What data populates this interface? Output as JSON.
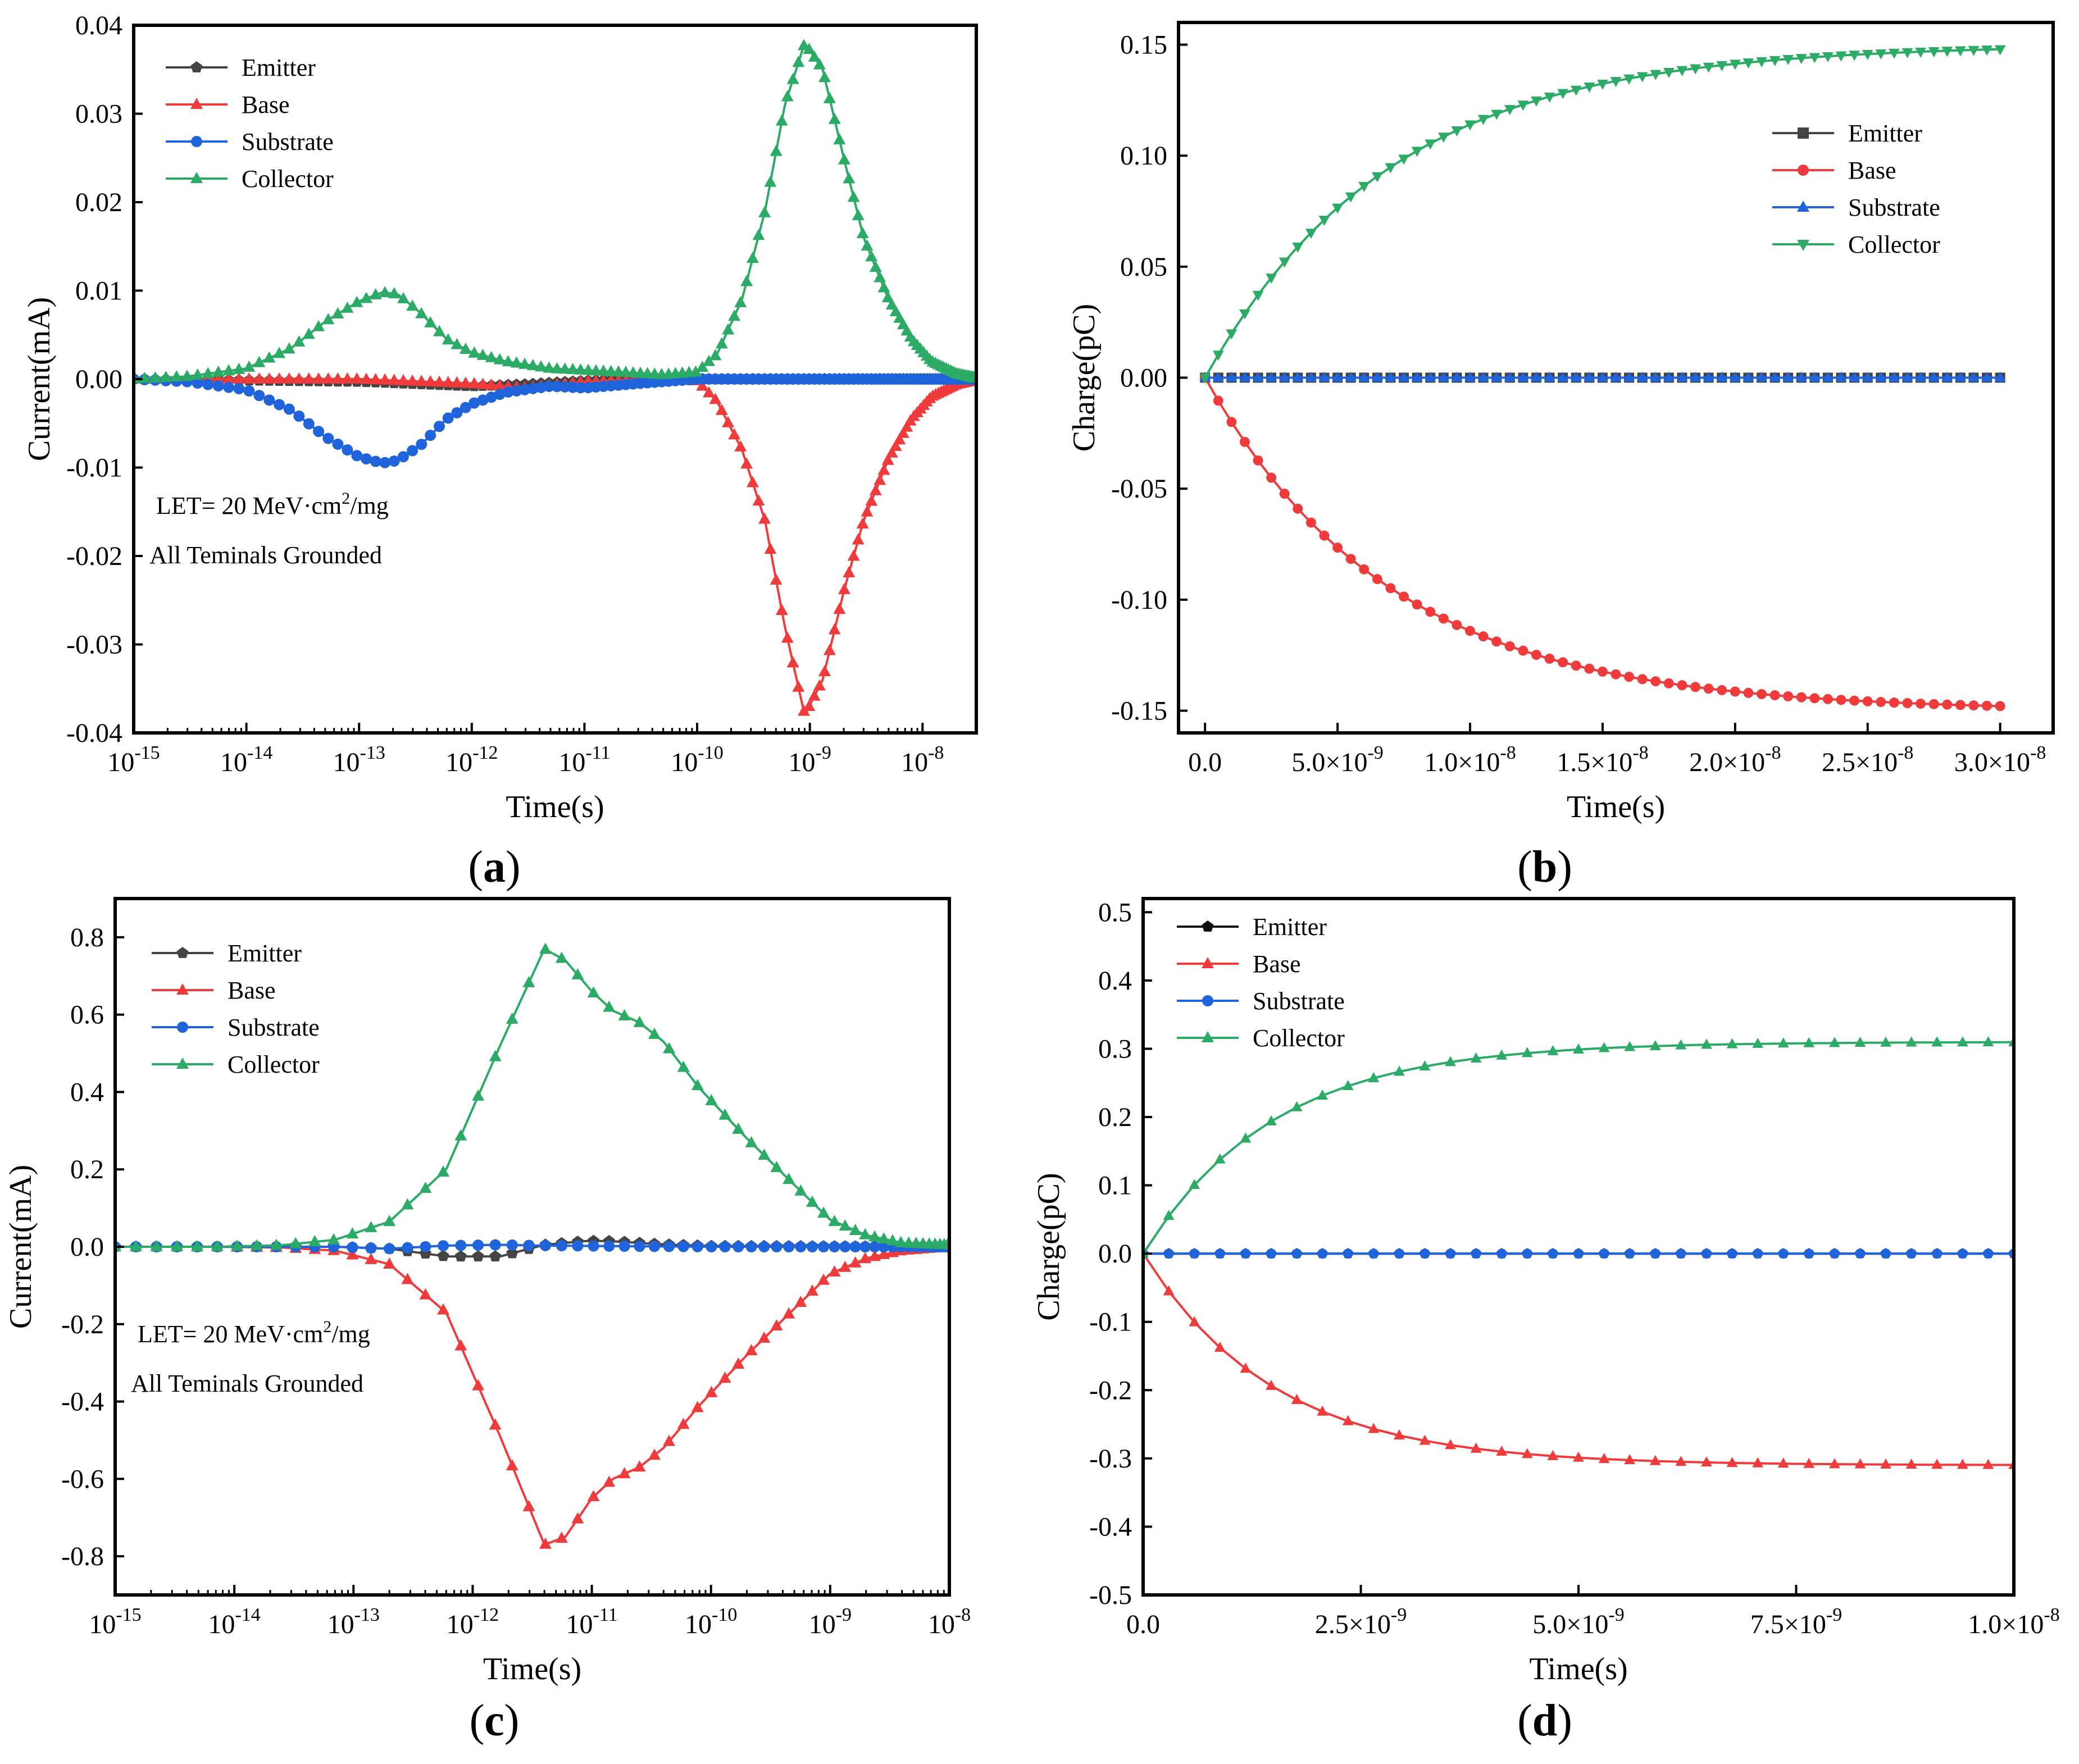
{
  "figure": {
    "panels": [
      {
        "label_open": "(",
        "label_letter": "a",
        "label_close": ")"
      },
      {
        "label_open": "(",
        "label_letter": "b",
        "label_close": ")"
      },
      {
        "label_open": "(",
        "label_letter": "c",
        "label_close": ")"
      },
      {
        "label_open": "(",
        "label_letter": "d",
        "label_close": ")"
      }
    ]
  },
  "colors": {
    "emitter": "#444444",
    "base": "#ef3b3b",
    "substrate": "#1f64db",
    "collector": "#2bab66",
    "emitter_d": "#111111"
  },
  "chart_data": [
    {
      "id": "a",
      "type": "line",
      "x_scale": "log",
      "xlabel": "Time(s)",
      "ylabel": "Current(mA)",
      "xlim": [
        1e-15,
        3e-08
      ],
      "ylim": [
        -0.04,
        0.04
      ],
      "x_ticks": [
        {
          "base": "10",
          "exp": "-15"
        },
        {
          "base": "10",
          "exp": "-14"
        },
        {
          "base": "10",
          "exp": "-13"
        },
        {
          "base": "10",
          "exp": "-12"
        },
        {
          "base": "10",
          "exp": "-11"
        },
        {
          "base": "10",
          "exp": "-10"
        },
        {
          "base": "10",
          "exp": "-9"
        },
        {
          "base": "10",
          "exp": "-8"
        }
      ],
      "y_ticks": [
        "0.04",
        "0.03",
        "0.02",
        "0.01",
        "0.00",
        "-0.01",
        "-0.02",
        "-0.03",
        "-0.04"
      ],
      "legend_position": "top-left",
      "annotation": {
        "line1_pre": "LET= 20 MeV·cm",
        "line1_sup": "2",
        "line1_post": "/mg",
        "line2": "All Teminals Grounded"
      },
      "series": [
        {
          "name": "Emitter",
          "marker": "pentagon",
          "x": [
            1e-15,
            1e-13,
            1e-12,
            3e-12,
            1e-11,
            3e-11,
            1e-10,
            1e-09,
            1e-08,
            3e-08
          ],
          "values": [
            0,
            -0.0003,
            -0.0008,
            -0.0006,
            -0.0002,
            0,
            0,
            0,
            0,
            0
          ]
        },
        {
          "name": "Base",
          "marker": "triangle",
          "x": [
            1e-15,
            1e-14,
            1e-13,
            1e-12,
            3e-12,
            1e-11,
            5e-11,
            1e-10,
            1.5e-10,
            2.5e-10,
            4e-10,
            6e-10,
            9e-10,
            1.3e-09,
            2e-09,
            3e-09,
            5e-09,
            8e-09,
            1.2e-08,
            2e-08,
            3e-08
          ],
          "values": [
            0,
            0,
            0,
            -0.0005,
            -0.001,
            -0.0003,
            0,
            -0.0002,
            -0.0025,
            -0.008,
            -0.016,
            -0.028,
            -0.038,
            -0.034,
            -0.024,
            -0.016,
            -0.009,
            -0.0045,
            -0.002,
            -0.0006,
            -0.0001
          ]
        },
        {
          "name": "Substrate",
          "marker": "circle",
          "x": [
            1e-15,
            3e-15,
            1e-14,
            2.5e-14,
            5e-14,
            1e-13,
            1.6e-13,
            2.2e-13,
            3.5e-13,
            6e-13,
            1e-12,
            2e-12,
            5e-12,
            1e-11,
            3e-11,
            1e-10,
            3e-08
          ],
          "values": [
            0,
            -0.0003,
            -0.0012,
            -0.0035,
            -0.0065,
            -0.0088,
            -0.0095,
            -0.0092,
            -0.0075,
            -0.0045,
            -0.0028,
            -0.0015,
            -0.0008,
            -0.001,
            -0.0005,
            0,
            0
          ]
        },
        {
          "name": "Collector",
          "marker": "triangle",
          "x": [
            1e-15,
            3e-15,
            1e-14,
            2.5e-14,
            5e-14,
            1e-13,
            1.6e-13,
            2.2e-13,
            3.5e-13,
            6e-13,
            1e-12,
            2e-12,
            5e-12,
            1e-11,
            2e-11,
            5e-11,
            1e-10,
            1.5e-10,
            2.5e-10,
            4e-10,
            6e-10,
            9e-10,
            1.3e-09,
            2e-09,
            3e-09,
            5e-09,
            8e-09,
            1.2e-08,
            2e-08,
            3e-08
          ],
          "values": [
            0,
            0.0003,
            0.0012,
            0.0035,
            0.0065,
            0.0088,
            0.0098,
            0.0096,
            0.0075,
            0.0045,
            0.003,
            0.002,
            0.0012,
            0.001,
            0.0008,
            0.0005,
            0.0008,
            0.0028,
            0.009,
            0.019,
            0.031,
            0.038,
            0.035,
            0.025,
            0.016,
            0.009,
            0.0045,
            0.002,
            0.0006,
            0.0001
          ]
        }
      ]
    },
    {
      "id": "b",
      "type": "line",
      "x_scale": "linear",
      "xlabel": "Time(s)",
      "ylabel": "Charge(pC)",
      "xlim": [
        -1e-09,
        3.2e-08
      ],
      "ylim": [
        -0.16,
        0.16
      ],
      "x_ticks": [
        {
          "value": 0,
          "mant": "0.0",
          "exp": ""
        },
        {
          "value": 5e-09,
          "mant": "5.0×10",
          "exp": "-9"
        },
        {
          "value": 1e-08,
          "mant": "1.0×10",
          "exp": "-8"
        },
        {
          "value": 1.5e-08,
          "mant": "1.5×10",
          "exp": "-8"
        },
        {
          "value": 2e-08,
          "mant": "2.0×10",
          "exp": "-8"
        },
        {
          "value": 2.5e-08,
          "mant": "2.5×10",
          "exp": "-8"
        },
        {
          "value": 3e-08,
          "mant": "3.0×10",
          "exp": "-8"
        }
      ],
      "y_ticks": [
        0.15,
        0.1,
        0.05,
        0.0,
        -0.05,
        -0.1,
        -0.15
      ],
      "y_tick_labels": [
        "0.15",
        "0.10",
        "0.05",
        "0.00",
        "-0.05",
        "-0.10",
        "-0.15"
      ],
      "legend_position": "upper-right",
      "curve": {
        "amplitude": 0.15,
        "tau": 7e-09,
        "t_max": 3e-08,
        "points": 61
      },
      "series": [
        {
          "name": "Emitter",
          "marker": "square",
          "sign": 0
        },
        {
          "name": "Base",
          "marker": "circle",
          "sign": -1
        },
        {
          "name": "Substrate",
          "marker": "triangle",
          "sign": 0
        },
        {
          "name": "Collector",
          "marker": "triangle-down",
          "sign": 1
        }
      ]
    },
    {
      "id": "c",
      "type": "line",
      "x_scale": "log",
      "xlabel": "Time(s)",
      "ylabel": "Current(mA)",
      "xlim": [
        1e-15,
        1e-08
      ],
      "ylim": [
        -0.9,
        0.9
      ],
      "x_ticks": [
        {
          "base": "10",
          "exp": "-15"
        },
        {
          "base": "10",
          "exp": "-14"
        },
        {
          "base": "10",
          "exp": "-13"
        },
        {
          "base": "10",
          "exp": "-12"
        },
        {
          "base": "10",
          "exp": "-11"
        },
        {
          "base": "10",
          "exp": "-10"
        },
        {
          "base": "10",
          "exp": "-9"
        },
        {
          "base": "10",
          "exp": "-8"
        }
      ],
      "y_ticks": [
        "0.8",
        "0.6",
        "0.4",
        "0.2",
        "0.0",
        "-0.2",
        "-0.4",
        "-0.6",
        "-0.8"
      ],
      "legend_position": "top-left",
      "annotation": {
        "line1_pre": "LET= 20 MeV·cm",
        "line1_sup": "2",
        "line1_post": "/mg",
        "line2": "All Teminals Grounded"
      },
      "series": [
        {
          "name": "Emitter",
          "marker": "pentagon",
          "x": [
            1e-15,
            7e-15,
            2.5e-14,
            7e-14,
            2e-13,
            6e-13,
            1.7e-12,
            4e-12,
            9e-12,
            1.3e-11,
            2e-11,
            3e-11,
            5e-11,
            1e-10,
            1e-08
          ],
          "values": [
            0,
            0,
            0,
            0,
            -0.005,
            -0.025,
            -0.025,
            0.005,
            0.015,
            0.015,
            0.012,
            0.008,
            0.005,
            0.002,
            0
          ]
        },
        {
          "name": "Base",
          "marker": "triangle",
          "x": [
            1e-15,
            7e-15,
            2.5e-14,
            7e-14,
            2e-13,
            6e-13,
            1.7e-12,
            4e-12,
            6e-12,
            1e-11,
            1.5e-11,
            2.5e-11,
            4e-11,
            8e-11,
            2e-10,
            5e-10,
            1e-09,
            2e-09,
            4e-09,
            1e-08
          ],
          "values": [
            0,
            0,
            -0.002,
            -0.01,
            -0.045,
            -0.17,
            -0.49,
            -0.77,
            -0.75,
            -0.65,
            -0.6,
            -0.57,
            -0.52,
            -0.41,
            -0.28,
            -0.16,
            -0.07,
            -0.03,
            -0.01,
            0
          ]
        },
        {
          "name": "Substrate",
          "marker": "circle",
          "x": [
            1e-15,
            7e-14,
            2e-13,
            6e-13,
            1.7e-12,
            4e-12,
            1e-11,
            3e-11,
            1e-10,
            1e-08
          ],
          "values": [
            0,
            0,
            -0.005,
            0.003,
            0.005,
            0.003,
            0.002,
            0.001,
            0,
            0
          ]
        },
        {
          "name": "Collector",
          "marker": "triangle",
          "x": [
            1e-15,
            7e-15,
            2.5e-14,
            7e-14,
            2e-13,
            6e-13,
            1.7e-12,
            4e-12,
            6e-12,
            1e-11,
            1.5e-11,
            2.5e-11,
            4e-11,
            8e-11,
            2e-10,
            5e-10,
            1e-09,
            2e-09,
            4e-09,
            1e-08
          ],
          "values": [
            0,
            0,
            0.004,
            0.018,
            0.065,
            0.2,
            0.52,
            0.77,
            0.74,
            0.66,
            0.61,
            0.58,
            0.53,
            0.41,
            0.28,
            0.16,
            0.07,
            0.03,
            0.01,
            0.005
          ]
        }
      ]
    },
    {
      "id": "d",
      "type": "line",
      "x_scale": "linear",
      "xlabel": "Time(s)",
      "ylabel": "Charge(pC)",
      "xlim": [
        0,
        1e-08
      ],
      "ylim": [
        -0.5,
        0.52
      ],
      "x_ticks": [
        {
          "value": 0,
          "mant": "0.0",
          "exp": ""
        },
        {
          "value": 2.5e-09,
          "mant": "2.5×10",
          "exp": "-9"
        },
        {
          "value": 5e-09,
          "mant": "5.0×10",
          "exp": "-9"
        },
        {
          "value": 7.5e-09,
          "mant": "7.5×10",
          "exp": "-9"
        },
        {
          "value": 1e-08,
          "mant": "1.0×10",
          "exp": "-8"
        }
      ],
      "y_ticks": [
        0.5,
        0.4,
        0.3,
        0.2,
        0.1,
        0.0,
        -0.1,
        -0.2,
        -0.3,
        -0.4,
        -0.5
      ],
      "y_tick_labels": [
        "0.5",
        "0.4",
        "0.3",
        "0.2",
        "0.1",
        "0.0",
        "-0.1",
        "-0.2",
        "-0.3",
        "-0.4",
        "-0.5"
      ],
      "legend_position": "top-left",
      "curve": {
        "amplitude": 0.31,
        "tau": 1.5e-09,
        "t_max": 1e-08,
        "points": 35
      },
      "series": [
        {
          "name": "Emitter",
          "marker": "pentagon",
          "sign": 0
        },
        {
          "name": "Base",
          "marker": "triangle",
          "sign": -1
        },
        {
          "name": "Substrate",
          "marker": "circle",
          "sign": 0
        },
        {
          "name": "Collector",
          "marker": "triangle",
          "sign": 1
        }
      ]
    }
  ]
}
